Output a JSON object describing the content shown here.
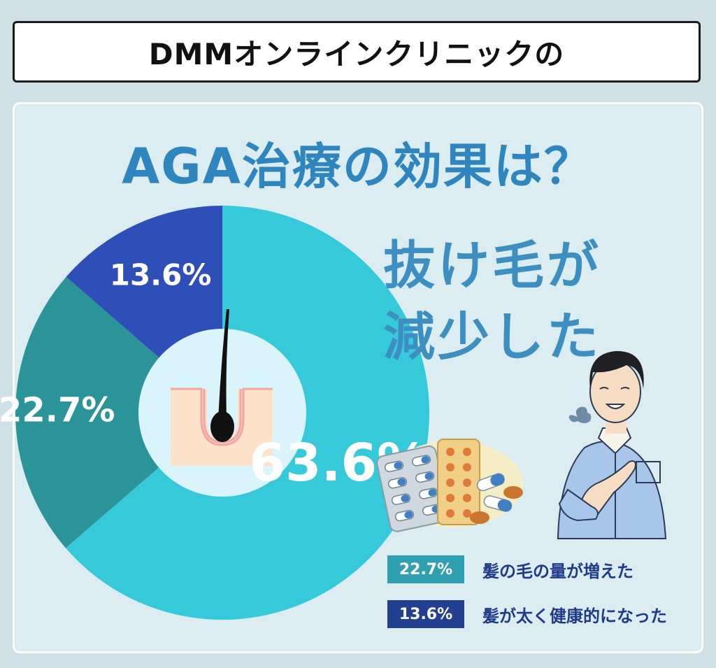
{
  "header": {
    "title": "DMMオンラインクリニックの"
  },
  "headline": {
    "line1": "抜け毛が",
    "line2": "減少した"
  },
  "legend": [
    {
      "value": "22.7%",
      "label": "髪の毛の量が増えた"
    },
    {
      "value": "13.6%",
      "label": "髪が太く健康的になった"
    }
  ],
  "chart_data": {
    "type": "pie",
    "title": "AGA治療の効果は？",
    "slices": [
      {
        "label": "抜け毛が減少した",
        "value": 63.6,
        "display": "63.6%",
        "color": "#36c9d9"
      },
      {
        "label": "髪の毛の量が増えた",
        "value": 22.7,
        "display": "22.7%",
        "color": "#2a9499"
      },
      {
        "label": "髪が太く健康的になった",
        "value": 13.6,
        "display": "13.6%",
        "color": "#2f4fb8"
      }
    ]
  }
}
